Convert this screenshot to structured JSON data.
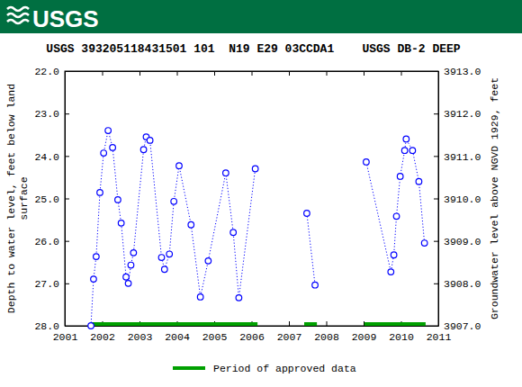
{
  "header": {
    "logo": "USGS"
  },
  "chart_data": {
    "type": "line",
    "title": "USGS 393205118431501 101  N19 E29 03CCDA1    USGS DB-2 DEEP",
    "y_label": [
      "Depth to water level, feet below land",
      "surface"
    ],
    "y2_label": "Groundwater level above NGVD 1929, feet",
    "x": [
      2001.7,
      2001.77,
      2001.84,
      2001.94,
      2002.04,
      2002.16,
      2002.28,
      2002.42,
      2002.51,
      2002.64,
      2002.7,
      2002.77,
      2002.84,
      2003.11,
      2003.18,
      2003.28,
      2003.59,
      2003.67,
      2003.8,
      2003.92,
      2004.06,
      2004.38,
      2004.63,
      2004.84,
      2005.31,
      2005.51,
      2005.66,
      2006.1,
      2006.8,
      2007.48,
      2007.7,
      2008.4,
      2009.07,
      2009.73,
      2009.81,
      2009.88,
      2009.98,
      2010.1,
      2010.14,
      2010.31,
      2010.48,
      2010.63
    ],
    "series": [
      {
        "color": "#0000ff",
        "marker": "circle",
        "line_style": "dotted",
        "values": [
          28.0,
          26.9,
          26.37,
          24.86,
          23.93,
          23.4,
          23.8,
          25.03,
          25.58,
          26.85,
          27.0,
          26.57,
          26.28,
          23.85,
          23.55,
          23.63,
          26.39,
          26.67,
          26.31,
          25.07,
          24.23,
          25.62,
          27.32,
          26.47,
          24.4,
          25.8,
          27.34,
          24.3,
          null,
          25.35,
          27.04,
          null,
          24.14,
          26.73,
          26.33,
          25.42,
          24.48,
          23.87,
          23.6,
          23.87,
          24.6,
          26.05
        ]
      }
    ],
    "approved_periods": {
      "label": "Period of approved data",
      "color": "#00a000",
      "ranges": [
        [
          2001.72,
          2006.16
        ],
        [
          2007.41,
          2007.75
        ],
        [
          2009.02,
          2010.66
        ]
      ]
    },
    "xlim": [
      2001,
      2011
    ],
    "xticks": [
      2001,
      2002,
      2003,
      2004,
      2005,
      2006,
      2007,
      2008,
      2009,
      2010,
      2011
    ],
    "ylim": [
      28,
      22
    ],
    "yticks": [
      {
        "value": 22,
        "label": "22.0"
      },
      {
        "value": 23,
        "label": "23.0"
      },
      {
        "value": 24,
        "label": "24.0"
      },
      {
        "value": 25,
        "label": "25.0"
      },
      {
        "value": 26,
        "label": "26.0"
      },
      {
        "value": 27,
        "label": "27.0"
      },
      {
        "value": 28,
        "label": "28.0"
      }
    ],
    "y2lim": [
      3907,
      3913
    ],
    "y2ticks": [
      {
        "value": 3907,
        "label": "3907.0"
      },
      {
        "value": 3908,
        "label": "3908.0"
      },
      {
        "value": 3909,
        "label": "3909.0"
      },
      {
        "value": 3910,
        "label": "3910.0"
      },
      {
        "value": 3911,
        "label": "3911.0"
      },
      {
        "value": 3912,
        "label": "3912.0"
      },
      {
        "value": 3913,
        "label": "3913.0"
      }
    ],
    "grid": false
  }
}
